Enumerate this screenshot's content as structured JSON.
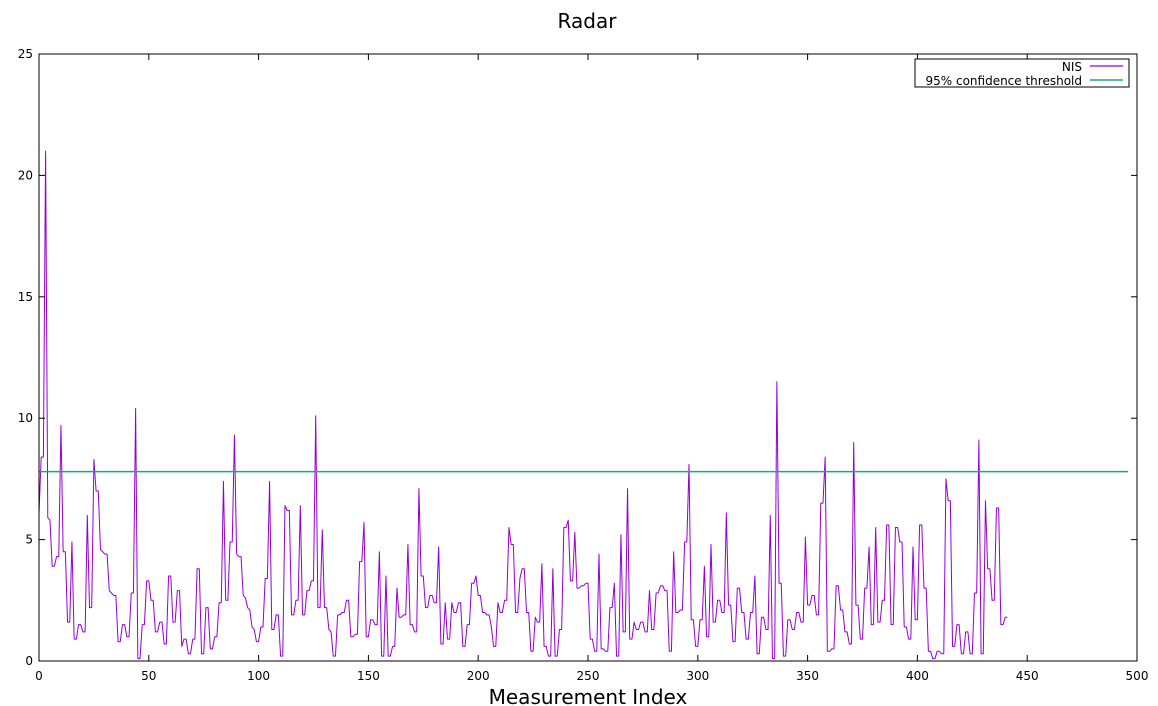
{
  "chart_data": {
    "type": "line",
    "title": "Radar",
    "xlabel": "Measurement Index",
    "ylabel": "",
    "xlim": [
      0,
      500
    ],
    "ylim": [
      0,
      25
    ],
    "x_ticks": [
      0,
      50,
      100,
      150,
      200,
      250,
      300,
      350,
      400,
      450,
      500
    ],
    "y_ticks": [
      0,
      5,
      10,
      15,
      20,
      25
    ],
    "grid": false,
    "legend_position": "top-right",
    "series": [
      {
        "name": "NIS",
        "color": "#9400d3",
        "x_start": 0,
        "x_step": 1,
        "values": [
          6.1,
          8.4,
          8.4,
          21.0,
          5.9,
          5.8,
          3.9,
          3.9,
          4.3,
          4.3,
          9.7,
          4.5,
          4.5,
          1.6,
          1.6,
          4.9,
          0.9,
          0.9,
          1.5,
          1.5,
          1.2,
          1.2,
          6.0,
          2.2,
          2.2,
          8.3,
          7.0,
          7.0,
          4.6,
          4.5,
          4.4,
          4.4,
          2.9,
          2.8,
          2.7,
          2.7,
          0.8,
          0.8,
          1.5,
          1.5,
          1.0,
          1.0,
          2.8,
          2.8,
          10.4,
          0.1,
          0.1,
          1.5,
          1.5,
          3.3,
          3.3,
          2.5,
          2.5,
          1.2,
          1.2,
          1.6,
          1.6,
          0.7,
          0.7,
          3.5,
          3.5,
          1.6,
          1.6,
          2.9,
          2.9,
          0.6,
          0.9,
          0.9,
          0.3,
          0.3,
          0.9,
          0.9,
          3.8,
          3.8,
          0.3,
          0.3,
          2.2,
          2.2,
          0.5,
          0.5,
          1.0,
          1.0,
          2.4,
          2.4,
          7.4,
          2.5,
          2.5,
          4.9,
          4.9,
          9.3,
          4.4,
          4.3,
          4.3,
          2.7,
          2.6,
          2.2,
          2.1,
          1.4,
          1.3,
          0.8,
          0.8,
          1.4,
          1.4,
          3.4,
          3.4,
          7.4,
          1.3,
          1.3,
          1.9,
          1.9,
          0.2,
          0.2,
          6.4,
          6.2,
          6.2,
          1.9,
          1.9,
          2.5,
          2.5,
          6.4,
          1.9,
          1.9,
          2.9,
          2.9,
          3.3,
          3.3,
          10.1,
          2.2,
          2.2,
          5.4,
          2.2,
          2.2,
          1.3,
          1.2,
          0.2,
          0.2,
          1.9,
          1.9,
          2.0,
          2.0,
          2.5,
          2.5,
          1.0,
          1.0,
          1.1,
          1.1,
          4.1,
          4.1,
          5.7,
          1.0,
          1.0,
          1.7,
          1.7,
          1.5,
          1.5,
          4.5,
          0.2,
          0.2,
          3.5,
          0.2,
          0.2,
          0.6,
          0.6,
          3.0,
          1.8,
          1.8,
          1.9,
          1.9,
          4.8,
          1.5,
          1.5,
          1.2,
          1.2,
          7.1,
          3.5,
          3.5,
          2.2,
          2.2,
          2.7,
          2.7,
          2.4,
          2.4,
          4.7,
          0.7,
          0.7,
          2.4,
          0.9,
          0.9,
          2.4,
          2.0,
          2.0,
          2.4,
          2.4,
          0.6,
          0.6,
          1.5,
          1.5,
          3.2,
          3.2,
          3.5,
          2.7,
          2.7,
          2.0,
          2.0,
          1.9,
          1.9,
          1.4,
          0.6,
          0.6,
          2.4,
          2.0,
          2.0,
          2.5,
          2.5,
          5.5,
          4.8,
          4.8,
          2.0,
          2.0,
          3.4,
          3.8,
          3.8,
          2.0,
          2.0,
          0.4,
          0.4,
          1.8,
          1.6,
          1.6,
          4.0,
          0.6,
          0.6,
          0.2,
          0.2,
          3.8,
          0.2,
          0.2,
          1.3,
          1.3,
          5.5,
          5.5,
          5.8,
          3.3,
          3.3,
          5.3,
          3.0,
          3.0,
          3.1,
          3.1,
          3.2,
          3.2,
          0.9,
          0.9,
          0.4,
          0.4,
          4.4,
          0.5,
          0.5,
          0.4,
          0.4,
          2.2,
          2.2,
          3.2,
          0.2,
          0.2,
          5.2,
          1.2,
          1.2,
          7.1,
          0.9,
          0.9,
          1.6,
          1.3,
          1.3,
          1.6,
          1.6,
          1.2,
          1.2,
          2.9,
          1.3,
          1.3,
          2.8,
          2.8,
          3.1,
          3.1,
          2.9,
          2.9,
          0.4,
          0.4,
          4.5,
          2.0,
          2.0,
          2.1,
          2.1,
          4.9,
          4.9,
          8.1,
          1.7,
          1.7,
          0.6,
          0.6,
          1.7,
          1.7,
          3.9,
          1.0,
          1.0,
          4.8,
          1.6,
          1.6,
          2.5,
          2.5,
          2.0,
          2.0,
          6.1,
          2.3,
          2.3,
          0.8,
          0.8,
          3.0,
          3.0,
          2.0,
          2.0,
          0.9,
          0.9,
          2.0,
          2.0,
          3.5,
          0.3,
          0.3,
          1.8,
          1.8,
          1.3,
          1.3,
          6.0,
          0.1,
          0.1,
          11.5,
          3.2,
          3.2,
          0.2,
          0.2,
          1.7,
          1.7,
          1.3,
          1.3,
          2.0,
          2.0,
          1.6,
          1.6,
          5.1,
          2.3,
          2.3,
          2.7,
          2.7,
          1.9,
          1.9,
          6.5,
          6.5,
          8.4,
          0.4,
          0.4,
          0.5,
          0.5,
          3.1,
          3.1,
          2.1,
          2.1,
          1.2,
          1.2,
          0.7,
          0.7,
          9.0,
          2.3,
          2.3,
          0.9,
          0.9,
          3.0,
          3.0,
          4.7,
          1.5,
          1.5,
          5.5,
          1.6,
          1.6,
          2.5,
          2.5,
          5.6,
          5.6,
          1.5,
          1.5,
          5.5,
          5.5,
          4.9,
          4.9,
          1.4,
          1.4,
          0.9,
          0.9,
          4.7,
          1.7,
          1.7,
          5.6,
          5.6,
          3.0,
          3.0,
          0.4,
          0.4,
          0.1,
          0.1,
          0.4,
          0.4,
          0.3,
          0.3,
          7.5,
          6.6,
          6.6,
          0.6,
          0.6,
          1.5,
          1.5,
          0.3,
          0.3,
          1.2,
          1.2,
          0.3,
          0.3,
          2.8,
          2.8,
          9.1,
          0.3,
          0.3,
          6.6,
          3.8,
          3.8,
          2.5,
          2.5,
          6.3,
          6.3,
          1.5,
          1.5,
          1.8,
          1.8
        ]
      },
      {
        "name": "95% confidence threshold",
        "color": "#1fa583",
        "x": [
          0,
          496
        ],
        "values": [
          7.8,
          7.8
        ]
      }
    ]
  }
}
